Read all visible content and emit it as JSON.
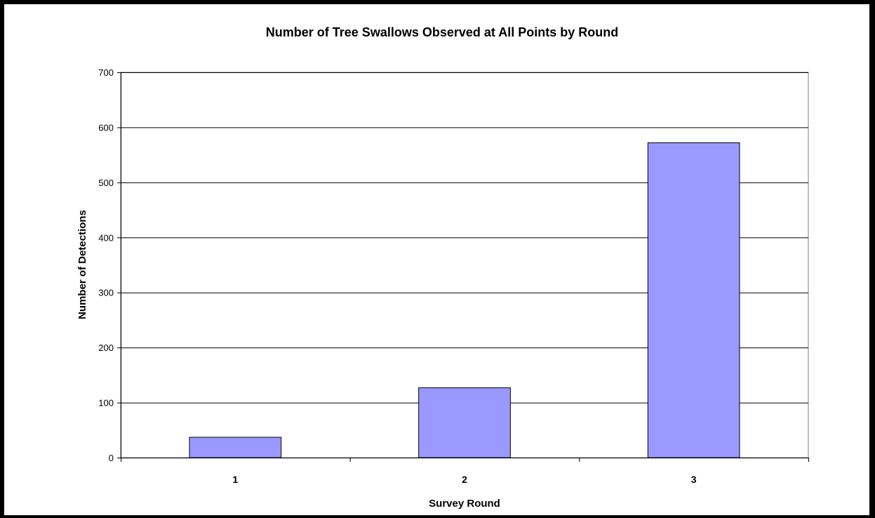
{
  "chart_data": {
    "type": "bar",
    "title": "Number of Tree Swallows Observed at All Points by Round",
    "xlabel": "Survey Round",
    "ylabel": "Number of Detections",
    "categories": [
      "1",
      "2",
      "3"
    ],
    "values": [
      37,
      127,
      572
    ],
    "ylim": [
      0,
      700
    ],
    "yticks": [
      0,
      100,
      200,
      300,
      400,
      500,
      600,
      700
    ],
    "grid": true,
    "legend": "none",
    "colors": {
      "bar_fill": "#9999ff",
      "bar_stroke": "#000000",
      "grid": "#000000",
      "background": "#ffffff"
    }
  }
}
